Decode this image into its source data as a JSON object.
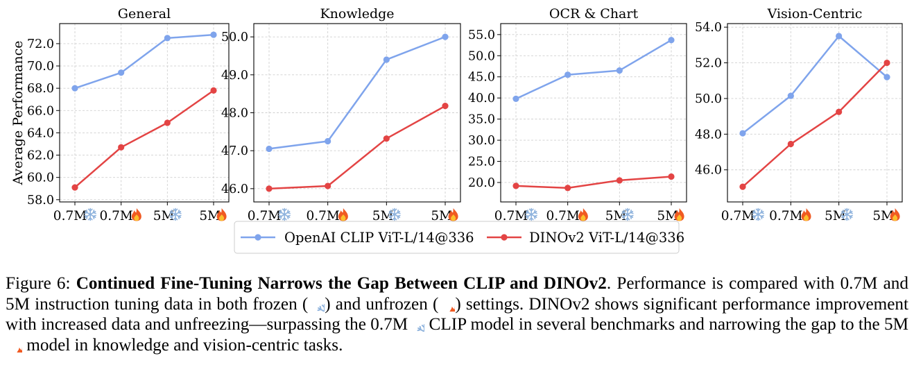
{
  "chart_data": [
    {
      "type": "line",
      "title": "General",
      "ylabel": "Average Performance",
      "categories": [
        "0.7M",
        "0.7M",
        "5M",
        "5M"
      ],
      "category_icons": [
        "snowflake",
        "fire",
        "snowflake",
        "fire"
      ],
      "ylim": [
        57.8,
        73.8
      ],
      "yticks": [
        58,
        60,
        62,
        64,
        66,
        68,
        70,
        72
      ],
      "tick_format": 1,
      "grid": true,
      "series": [
        {
          "name": "OpenAI CLIP ViT-L/14@336",
          "color": "#7fa4ec",
          "values": [
            68.0,
            69.4,
            72.5,
            72.8
          ]
        },
        {
          "name": "DINOv2 ViT-L/14@336",
          "color": "#e34444",
          "values": [
            59.1,
            62.7,
            64.9,
            67.8
          ]
        }
      ]
    },
    {
      "type": "line",
      "title": "Knowledge",
      "ylabel": "",
      "categories": [
        "0.7M",
        "0.7M",
        "5M",
        "5M"
      ],
      "category_icons": [
        "snowflake",
        "fire",
        "snowflake",
        "fire"
      ],
      "ylim": [
        45.65,
        50.35
      ],
      "yticks": [
        46,
        47,
        48,
        49,
        50
      ],
      "tick_format": 1,
      "grid": true,
      "series": [
        {
          "name": "OpenAI CLIP ViT-L/14@336",
          "color": "#7fa4ec",
          "values": [
            47.05,
            47.25,
            49.4,
            50.0
          ]
        },
        {
          "name": "DINOv2 ViT-L/14@336",
          "color": "#e34444",
          "values": [
            46.0,
            46.07,
            47.32,
            48.18
          ]
        }
      ]
    },
    {
      "type": "line",
      "title": "OCR & Chart",
      "ylabel": "",
      "categories": [
        "0.7M",
        "0.7M",
        "5M",
        "5M"
      ],
      "category_icons": [
        "snowflake",
        "fire",
        "snowflake",
        "fire"
      ],
      "ylim": [
        15.4,
        57.6
      ],
      "yticks": [
        20,
        25,
        30,
        35,
        40,
        45,
        50,
        55
      ],
      "tick_format": 1,
      "grid": true,
      "series": [
        {
          "name": "OpenAI CLIP ViT-L/14@336",
          "color": "#7fa4ec",
          "values": [
            39.8,
            45.5,
            46.5,
            53.7
          ]
        },
        {
          "name": "DINOv2 ViT-L/14@336",
          "color": "#e34444",
          "values": [
            19.2,
            18.7,
            20.5,
            21.4
          ]
        }
      ]
    },
    {
      "type": "line",
      "title": "Vision-Centric",
      "ylabel": "",
      "categories": [
        "0.7M",
        "0.7M",
        "5M",
        "5M"
      ],
      "category_icons": [
        "snowflake",
        "fire",
        "snowflake",
        "fire"
      ],
      "ylim": [
        44.2,
        54.2
      ],
      "yticks": [
        46,
        48,
        50,
        52,
        54
      ],
      "tick_format": 1,
      "grid": true,
      "series": [
        {
          "name": "OpenAI CLIP ViT-L/14@336",
          "color": "#7fa4ec",
          "values": [
            48.05,
            50.15,
            53.5,
            51.2
          ]
        },
        {
          "name": "DINOv2 ViT-L/14@336",
          "color": "#e34444",
          "values": [
            45.05,
            47.45,
            49.25,
            52.0
          ]
        }
      ]
    }
  ],
  "legend": {
    "position": "bottom-center",
    "items": [
      {
        "label": "OpenAI CLIP ViT-L/14@336",
        "color": "#7fa4ec"
      },
      {
        "label": "DINOv2 ViT-L/14@336",
        "color": "#e34444"
      }
    ]
  },
  "caption": {
    "prefix": "Figure 6: ",
    "title": "Continued Fine-Tuning Narrows the Gap Between CLIP and DINOv2",
    "t1": ". Performance is compared with 0.7M and 5M instruction tuning data in both frozen (",
    "t2": ") and unfrozen (",
    "t3": ") settings.  DINOv2 shows significant performance improvement with increased data and unfreezing—surpassing the 0.7M",
    "t4": " CLIP model in several benchmarks and narrowing the gap to the 5M",
    "t5": " model in knowledge and vision-centric tasks."
  }
}
